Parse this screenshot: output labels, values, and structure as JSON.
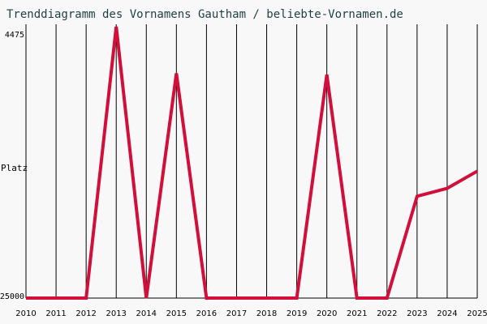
{
  "chart_data": {
    "type": "line",
    "title": "Trenddiagramm des Vornamens Gautham / beliebte-Vornamen.de",
    "y_label": "Platz",
    "x": [
      2010,
      2011,
      2012,
      2013,
      2014,
      2015,
      2016,
      2017,
      2018,
      2019,
      2020,
      2021,
      2022,
      2023,
      2024,
      2025
    ],
    "series": [
      {
        "color": "#d0103a",
        "values": [
          25000,
          25000,
          25000,
          4475,
          25000,
          8000,
          25000,
          25000,
          25000,
          25000,
          8100,
          25000,
          25000,
          17300,
          16700,
          15400
        ]
      }
    ],
    "xlim": [
      2010,
      2025
    ],
    "xticks": [
      2010,
      2011,
      2012,
      2013,
      2014,
      2015,
      2016,
      2017,
      2018,
      2019,
      2020,
      2021,
      2022,
      2023,
      2024,
      2025
    ],
    "ylim": [
      4475,
      25000
    ],
    "yticks": [
      4475,
      25000
    ],
    "y_inverted": true,
    "grid": true
  }
}
